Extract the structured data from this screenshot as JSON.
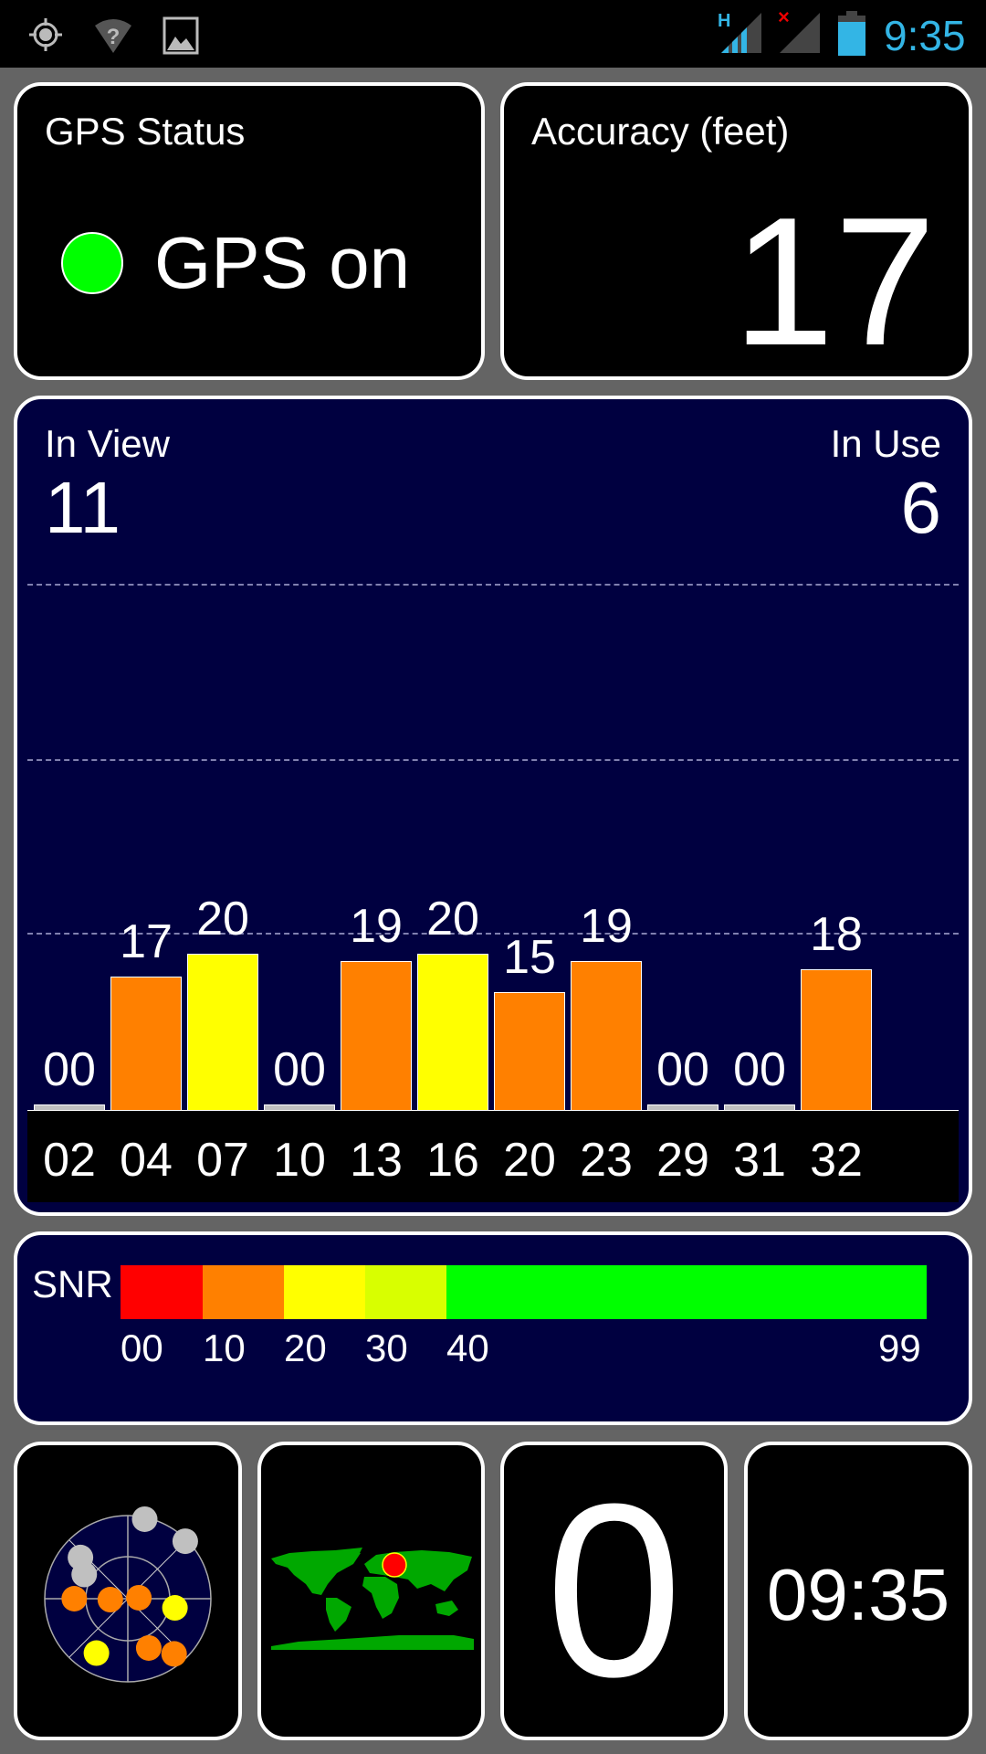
{
  "status_bar": {
    "time": "9:35",
    "network_type": "H",
    "icons": [
      "gps-icon",
      "wifi-unknown-icon",
      "image-notification-icon",
      "signal-icon",
      "no-signal-icon",
      "battery-icon"
    ],
    "time_color": "#33b5e5"
  },
  "gps_status": {
    "title": "GPS Status",
    "value": "GPS on",
    "indicator_color": "#00ff00"
  },
  "accuracy": {
    "title": "Accuracy (feet)",
    "value": "17"
  },
  "satellites": {
    "in_view_label": "In View",
    "in_view": "11",
    "in_use_label": "In Use",
    "in_use": "6"
  },
  "chart_data": {
    "type": "bar",
    "categories": [
      "02",
      "04",
      "07",
      "10",
      "13",
      "16",
      "20",
      "23",
      "29",
      "31",
      "32"
    ],
    "values": [
      0,
      17,
      20,
      0,
      19,
      20,
      15,
      19,
      0,
      0,
      18
    ],
    "value_labels": [
      "00",
      "17",
      "20",
      "00",
      "19",
      "20",
      "15",
      "19",
      "00",
      "00",
      "18"
    ],
    "colors": [
      "#c0c0c0",
      "#ff8000",
      "#ffff00",
      "#c0c0c0",
      "#ff8000",
      "#ffff00",
      "#ff8000",
      "#ff8000",
      "#c0c0c0",
      "#c0c0c0",
      "#ff8000"
    ],
    "grid": true
  },
  "snr": {
    "label": "SNR",
    "ticks": [
      "00",
      "10",
      "20",
      "30",
      "40",
      "99"
    ],
    "colors": [
      "#ff0000",
      "#ff8000",
      "#ffff00",
      "#d8ff00",
      "#00ff00"
    ]
  },
  "sky": {
    "satellites": [
      {
        "az": 12,
        "el": 2,
        "color": "#c0c0c0"
      },
      {
        "az": 45,
        "el": 2,
        "color": "#c0c0c0"
      },
      {
        "az": 311,
        "el": 22,
        "color": "#c0c0c0"
      },
      {
        "az": 299,
        "el": 36,
        "color": "#c0c0c0"
      },
      {
        "az": 270,
        "el": 32,
        "color": "#ff8000"
      },
      {
        "az": 267,
        "el": 71,
        "color": "#ff8000"
      },
      {
        "az": 85,
        "el": 78,
        "color": "#ff8000"
      },
      {
        "az": 101,
        "el": 38,
        "color": "#ffff00"
      },
      {
        "az": 210,
        "el": 22,
        "color": "#ffff00"
      },
      {
        "az": 157,
        "el": 32,
        "color": "#ff8000"
      },
      {
        "az": 140,
        "el": 12,
        "color": "#ff8000"
      }
    ]
  },
  "speed": {
    "value": "0"
  },
  "clock": {
    "value": "09:35"
  }
}
